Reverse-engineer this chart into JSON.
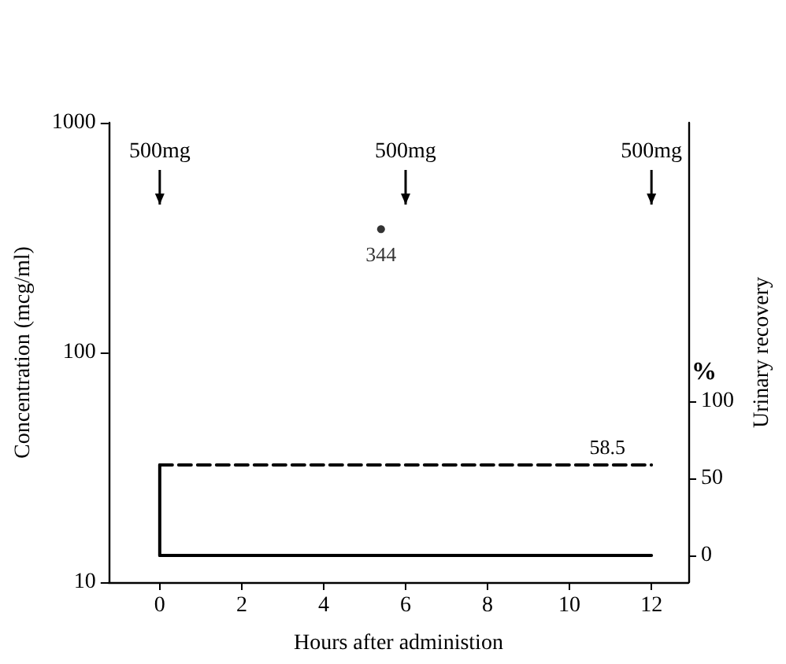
{
  "chart_data": {
    "type": "scatter",
    "xlabel": "Hours after administion",
    "ylabel": "Concentration (mcg/ml)",
    "y2label": "Urinary recovery",
    "xlim": [
      -1.25,
      12.9
    ],
    "xticks": [
      0,
      2,
      4,
      6,
      8,
      10,
      12
    ],
    "ylim": [
      10,
      1000
    ],
    "yticks": [
      10,
      100,
      1000
    ],
    "log": "y",
    "y2lim": [
      -17.3,
      280
    ],
    "y2ticks": [
      0,
      50,
      100
    ],
    "grid": false,
    "series": [
      {
        "color": "#000000",
        "x": [
          5.4
        ],
        "values": [
          344
        ],
        "value_labels": [
          "344"
        ],
        "marker": "circle"
      },
      {
        "type": "line",
        "axis": "y2",
        "color": "#000000",
        "x": [
          0,
          12
        ],
        "values": [
          0,
          0
        ],
        "line_style": "solid",
        "marker": "none"
      },
      {
        "type": "line",
        "axis": "y2",
        "color": "#000000",
        "x": [
          0,
          0
        ],
        "values": [
          0,
          58.5
        ],
        "line_style": "solid",
        "marker": "none"
      },
      {
        "type": "line",
        "axis": "y2",
        "color": "#000000",
        "x": [
          0,
          12
        ],
        "values": [
          58.5,
          58.5
        ],
        "value_labels": [
          null,
          "58.5"
        ],
        "line_style": "dashed",
        "marker": "none"
      }
    ],
    "ref_lines": [
      {
        "axis": "x",
        "value": 0,
        "label": "500mg"
      },
      {
        "axis": "x",
        "value": 6,
        "label": "500mg"
      },
      {
        "axis": "x",
        "value": 12,
        "label": "500mg"
      }
    ],
    "annotations": [
      "%"
    ]
  }
}
